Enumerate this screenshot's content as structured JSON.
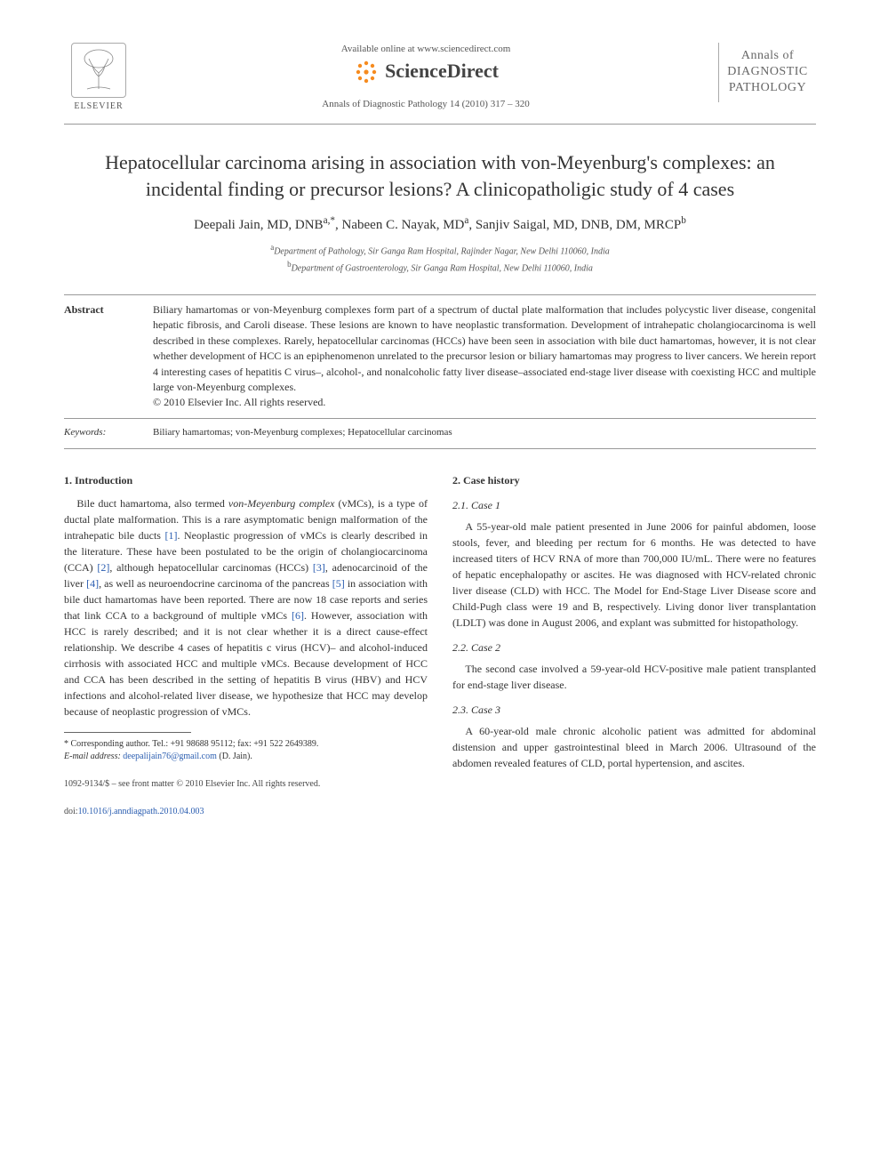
{
  "header": {
    "publisher_label": "ELSEVIER",
    "available_online": "Available online at www.sciencedirect.com",
    "sd_brand": "ScienceDirect",
    "journal_reference": "Annals of Diagnostic Pathology 14 (2010) 317 – 320",
    "journal_cover_line1": "Annals of",
    "journal_cover_line2": "DIAGNOSTIC",
    "journal_cover_line3": "PATHOLOGY"
  },
  "article": {
    "title": "Hepatocellular carcinoma arising in association with von-Meyenburg's complexes: an incidental finding or precursor lesions? A clinicopatholigic study of 4 cases",
    "authors_html": "Deepali Jain, MD, DNB<sup>a,*</sup>, Nabeen C. Nayak, MD<sup>a</sup>, Sanjiv Saigal, MD, DNB, DM, MRCP<sup>b</sup>",
    "affiliations": {
      "a": "Department of Pathology, Sir Ganga Ram Hospital, Rajinder Nagar, New Delhi 110060, India",
      "b": "Department of Gastroenterology, Sir Ganga Ram Hospital, New Delhi 110060, India"
    }
  },
  "abstract": {
    "label": "Abstract",
    "text": "Biliary hamartomas or von-Meyenburg complexes form part of a spectrum of ductal plate malformation that includes polycystic liver disease, congenital hepatic fibrosis, and Caroli disease. These lesions are known to have neoplastic transformation. Development of intrahepatic cholangiocarcinoma is well described in these complexes. Rarely, hepatocellular carcinomas (HCCs) have been seen in association with bile duct hamartomas, however, it is not clear whether development of HCC is an epiphenomenon unrelated to the precursor lesion or biliary hamartomas may progress to liver cancers. We herein report 4 interesting cases of hepatitis C virus–, alcohol-, and nonalcoholic fatty liver disease–associated end-stage liver disease with coexisting HCC and multiple large von-Meyenburg complexes.",
    "copyright": "© 2010 Elsevier Inc. All rights reserved."
  },
  "keywords": {
    "label": "Keywords:",
    "text": "Biliary hamartomas; von-Meyenburg complexes; Hepatocellular carcinomas"
  },
  "sections": {
    "intro_heading": "1. Introduction",
    "intro_body": "Bile duct hamartoma, also termed von-Meyenburg complex (vMCs), is a type of ductal plate malformation. This is a rare asymptomatic benign malformation of the intrahepatic bile ducts [1]. Neoplastic progression of vMCs is clearly described in the literature. These have been postulated to be the origin of cholangiocarcinoma (CCA) [2], although hepatocellular carcinomas (HCCs) [3], adenocarcinoid of the liver [4], as well as neuroendocrine carcinoma of the pancreas [5] in association with bile duct hamartomas have been reported. There are now 18 case reports and series that link CCA to a background of multiple vMCs [6]. However, association with HCC is rarely described; and it is not clear whether it is a direct cause-effect relationship. We describe 4 cases of hepatitis c virus (HCV)– and alcohol-induced cirrhosis with associated HCC and multiple vMCs. Because development of HCC and CCA has been described in the setting of hepatitis B virus (HBV) and HCV infections and alcohol-related liver disease, we hypothesize that HCC may develop because of neoplastic progression of vMCs.",
    "case_heading": "2. Case history",
    "case1_heading": "2.1. Case 1",
    "case1_body": "A 55-year-old male patient presented in June 2006 for painful abdomen, loose stools, fever, and bleeding per rectum for 6 months. He was detected to have increased titers of HCV RNA of more than 700,000 IU/mL. There were no features of hepatic encephalopathy or ascites. He was diagnosed with HCV-related chronic liver disease (CLD) with HCC. The Model for End-Stage Liver Disease score and Child-Pugh class were 19 and B, respectively. Living donor liver transplantation (LDLT) was done in August 2006, and explant was submitted for histopathology.",
    "case2_heading": "2.2. Case 2",
    "case2_body": "The second case involved a 59-year-old HCV-positive male patient transplanted for end-stage liver disease.",
    "case3_heading": "2.3. Case 3",
    "case3_body": "A 60-year-old male chronic alcoholic patient was admitted for abdominal distension and upper gastrointestinal bleed in March 2006. Ultrasound of the abdomen revealed features of CLD, portal hypertension, and ascites."
  },
  "footnotes": {
    "corresponding": "* Corresponding author. Tel.: +91 98688 95112; fax: +91 522 2649389.",
    "email_label": "E-mail address:",
    "email": "deepalijain76@gmail.com",
    "email_tail": " (D. Jain)."
  },
  "footer": {
    "issn_line": "1092-9134/$ – see front matter © 2010 Elsevier Inc. All rights reserved.",
    "doi_prefix": "doi:",
    "doi": "10.1016/j.anndiagpath.2010.04.003"
  },
  "colors": {
    "text": "#333333",
    "link": "#2a5db0",
    "rule": "#999999",
    "sd_orange": "#f68b1f"
  }
}
